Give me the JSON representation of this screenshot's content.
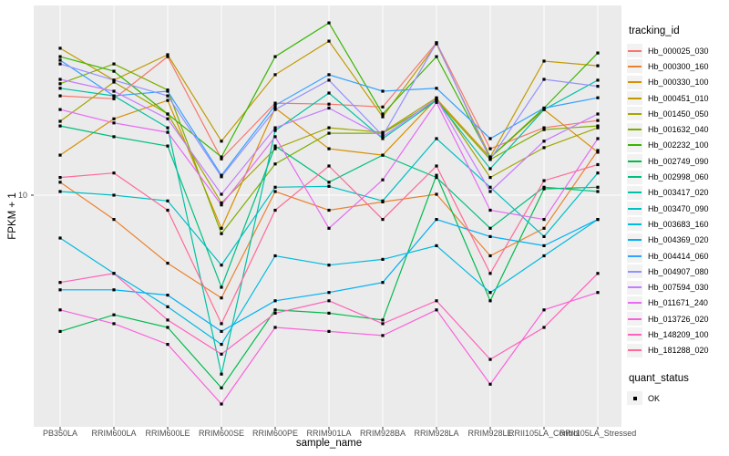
{
  "figure": {
    "ylabel": "FPKM + 1",
    "xlabel": "sample_name",
    "y_tick_label": "10",
    "legend": {
      "tracking_title": "tracking_id",
      "quant_title": "quant_status",
      "quant_ok_label": "OK"
    }
  },
  "colors": {
    "panel_bg": "#EBEBEB",
    "gridline": "#FFFFFF",
    "marker": "#000000",
    "tick_text": "#4D4D4D",
    "axis_text": "#000000"
  },
  "chart_data": {
    "type": "line",
    "title": "",
    "xlabel": "sample_name",
    "ylabel": "FPKM + 1",
    "y_scale": "log10",
    "log_range": [
      -0.0855,
      1.889
    ],
    "y_tick_values": [
      10
    ],
    "y_major_gridlines": [
      10
    ],
    "grid": "white major gridlines on gray panel; vertical line at each category",
    "legend_position": "right",
    "legend_titles": [
      "tracking_id",
      "quant_status"
    ],
    "point_marker": "filled-black-square",
    "quant_status_values": [
      "OK"
    ],
    "categories": [
      "PB350LA",
      "RRIM600LA",
      "RRIM600LE",
      "RRIM600SE",
      "RRIM600PE",
      "RRIM901LA",
      "RRIM928BA",
      "RRIM928LA",
      "RRIM928LE",
      "RRII105LA_Control",
      "RRII105LA_Stressed"
    ],
    "series": [
      {
        "name": "Hb_000025_030",
        "color": "#F8766D",
        "values": [
          29.2,
          28.3,
          44.6,
          14.8,
          27.0,
          26.7,
          25.9,
          51.8,
          16.5,
          20.7,
          22.4
        ]
      },
      {
        "name": "Hb_000300_160",
        "color": "#EA8331",
        "values": [
          11.5,
          7.7,
          4.8,
          3.3,
          10.4,
          8.5,
          9.3,
          10.1,
          5.2,
          7.0,
          16.2
        ]
      },
      {
        "name": "Hb_000330_100",
        "color": "#D89000",
        "values": [
          15.4,
          22.8,
          27.8,
          7.0,
          25.6,
          16.5,
          15.4,
          28.3,
          15.0,
          25.2,
          15.9
        ]
      },
      {
        "name": "Hb_000451_010",
        "color": "#C09B00",
        "values": [
          48.8,
          34.6,
          45.5,
          17.9,
          36.7,
          52.7,
          23.3,
          51.2,
          15.1,
          42.5,
          40.4
        ]
      },
      {
        "name": "Hb_001450_050",
        "color": "#A3A500",
        "values": [
          22.2,
          33.9,
          24.0,
          9.2,
          16.5,
          20.7,
          19.7,
          28.6,
          12.1,
          16.7,
          20.7
        ]
      },
      {
        "name": "Hb_001632_040",
        "color": "#7CAE00",
        "values": [
          33.3,
          41.2,
          31.1,
          6.6,
          14.0,
          19.5,
          19.5,
          27.8,
          14.7,
          20.3,
          21.1
        ]
      },
      {
        "name": "Hb_002232_100",
        "color": "#39B600",
        "values": [
          44.6,
          38.1,
          24.0,
          15.1,
          44.6,
          64.2,
          24.0,
          44.6,
          15.0,
          25.6,
          46.4
        ]
      },
      {
        "name": "Hb_002749_090",
        "color": "#00BB4E",
        "values": [
          2.3,
          2.75,
          2.4,
          1.25,
          2.9,
          2.8,
          2.6,
          12.4,
          3.2,
          10.7,
          10.9
        ]
      },
      {
        "name": "Hb_002998_060",
        "color": "#00BF7D",
        "values": [
          21.1,
          18.8,
          17.0,
          3.7,
          17.0,
          11.5,
          15.4,
          12.1,
          7.0,
          10.9,
          10.4
        ]
      },
      {
        "name": "Hb_003417_020",
        "color": "#00C1A3",
        "values": [
          31.7,
          29.2,
          20.7,
          1.45,
          20.1,
          30.1,
          18.4,
          27.8,
          13.3,
          25.2,
          34.6
        ]
      },
      {
        "name": "Hb_003470_090",
        "color": "#00BFC4",
        "values": [
          10.4,
          10.0,
          9.4,
          4.7,
          10.9,
          11.0,
          9.4,
          18.4,
          10.9,
          6.4,
          12.7
        ]
      },
      {
        "name": "Hb_003683_160",
        "color": "#00BAE0",
        "values": [
          6.3,
          4.3,
          3.0,
          2.0,
          5.2,
          4.7,
          5.0,
          5.8,
          3.5,
          5.2,
          7.7
        ]
      },
      {
        "name": "Hb_004369_020",
        "color": "#00B0F6",
        "values": [
          3.6,
          3.6,
          3.4,
          2.3,
          3.2,
          3.5,
          3.9,
          7.7,
          6.4,
          5.8,
          7.7
        ]
      },
      {
        "name": "Hb_004414_060",
        "color": "#35A2FF",
        "values": [
          42.9,
          29.2,
          30.7,
          12.4,
          26.4,
          36.7,
          30.7,
          31.7,
          18.4,
          25.6,
          28.6
        ]
      },
      {
        "name": "Hb_004907_080",
        "color": "#9590FF",
        "values": [
          41.2,
          34.6,
          29.2,
          12.2,
          25.2,
          34.6,
          19.0,
          51.8,
          14.7,
          34.9,
          32.4
        ]
      },
      {
        "name": "Hb_007594_030",
        "color": "#C77CFF",
        "values": [
          34.9,
          30.7,
          22.8,
          10.1,
          20.7,
          25.6,
          18.8,
          28.3,
          10.4,
          17.9,
          24.0
        ]
      },
      {
        "name": "Hb_011671_240",
        "color": "#E76BF3",
        "values": [
          25.2,
          21.8,
          19.7,
          9.0,
          18.8,
          7.0,
          11.8,
          27.2,
          8.5,
          7.7,
          18.4
        ]
      },
      {
        "name": "Hb_013726_020",
        "color": "#FA62DB",
        "values": [
          2.9,
          2.5,
          2.0,
          1.05,
          2.4,
          2.3,
          2.2,
          2.9,
          1.3,
          2.9,
          3.5
        ]
      },
      {
        "name": "Hb_148209_100",
        "color": "#FF62BC",
        "values": [
          3.9,
          4.3,
          2.6,
          1.8,
          2.8,
          3.2,
          2.5,
          3.2,
          1.7,
          2.4,
          4.3
        ]
      },
      {
        "name": "Hb_181288_020",
        "color": "#FF6A98",
        "values": [
          12.1,
          12.7,
          8.5,
          2.5,
          8.5,
          13.7,
          7.7,
          13.7,
          4.3,
          11.7,
          13.9
        ]
      }
    ]
  }
}
